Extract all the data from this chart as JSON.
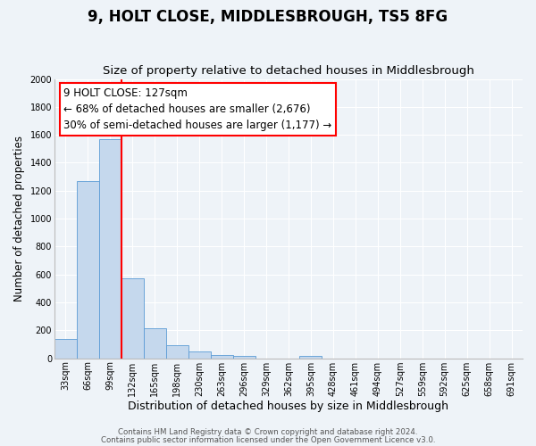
{
  "title": "9, HOLT CLOSE, MIDDLESBROUGH, TS5 8FG",
  "subtitle": "Size of property relative to detached houses in Middlesbrough",
  "xlabel": "Distribution of detached houses by size in Middlesbrough",
  "ylabel": "Number of detached properties",
  "bar_labels": [
    "33sqm",
    "66sqm",
    "99sqm",
    "132sqm",
    "165sqm",
    "198sqm",
    "230sqm",
    "263sqm",
    "296sqm",
    "329sqm",
    "362sqm",
    "395sqm",
    "428sqm",
    "461sqm",
    "494sqm",
    "527sqm",
    "559sqm",
    "592sqm",
    "625sqm",
    "658sqm",
    "691sqm"
  ],
  "bar_values": [
    140,
    1270,
    1570,
    570,
    215,
    95,
    50,
    25,
    15,
    0,
    0,
    15,
    0,
    0,
    0,
    0,
    0,
    0,
    0,
    0,
    0
  ],
  "bar_color": "#c5d8ed",
  "bar_edge_color": "#5b9bd5",
  "vline_color": "red",
  "annotation_line1": "9 HOLT CLOSE: 127sqm",
  "annotation_line2": "← 68% of detached houses are smaller (2,676)",
  "annotation_line3": "30% of semi-detached houses are larger (1,177) →",
  "annotation_box_color": "white",
  "annotation_box_edge_color": "red",
  "ylim": [
    0,
    2000
  ],
  "yticks": [
    0,
    200,
    400,
    600,
    800,
    1000,
    1200,
    1400,
    1600,
    1800,
    2000
  ],
  "footer1": "Contains HM Land Registry data © Crown copyright and database right 2024.",
  "footer2": "Contains public sector information licensed under the Open Government Licence v3.0.",
  "bg_color": "#eef3f8",
  "plot_bg_color": "#eef3f8",
  "title_fontsize": 12,
  "subtitle_fontsize": 9.5,
  "xlabel_fontsize": 9,
  "ylabel_fontsize": 8.5,
  "tick_fontsize": 7,
  "annotation_fontsize": 8.5,
  "footer_fontsize": 6.2
}
